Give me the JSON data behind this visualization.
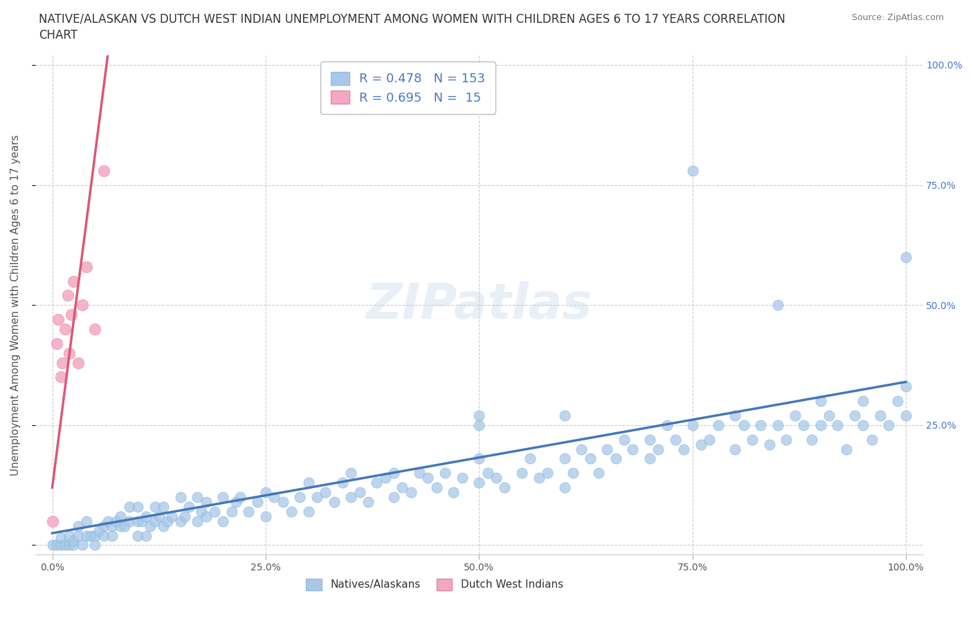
{
  "title_line1": "NATIVE/ALASKAN VS DUTCH WEST INDIAN UNEMPLOYMENT AMONG WOMEN WITH CHILDREN AGES 6 TO 17 YEARS CORRELATION",
  "title_line2": "CHART",
  "source": "Source: ZipAtlas.com",
  "ylabel": "Unemployment Among Women with Children Ages 6 to 17 years",
  "watermark": "ZIPatlas",
  "legend_entries": [
    {
      "label": "Natives/Alaskans",
      "color": "#aec6e8",
      "R": 0.478,
      "N": 153
    },
    {
      "label": "Dutch West Indians",
      "color": "#f4a8c0",
      "R": 0.695,
      "N": 15
    }
  ],
  "blue_scatter": [
    [
      0.0,
      0.0
    ],
    [
      0.005,
      0.0
    ],
    [
      0.01,
      0.0
    ],
    [
      0.01,
      0.015
    ],
    [
      0.015,
      0.0
    ],
    [
      0.02,
      0.0
    ],
    [
      0.02,
      0.02
    ],
    [
      0.025,
      0.0
    ],
    [
      0.025,
      0.01
    ],
    [
      0.03,
      0.02
    ],
    [
      0.03,
      0.04
    ],
    [
      0.035,
      0.0
    ],
    [
      0.04,
      0.02
    ],
    [
      0.04,
      0.05
    ],
    [
      0.045,
      0.02
    ],
    [
      0.05,
      0.0
    ],
    [
      0.05,
      0.02
    ],
    [
      0.055,
      0.03
    ],
    [
      0.06,
      0.02
    ],
    [
      0.06,
      0.04
    ],
    [
      0.065,
      0.05
    ],
    [
      0.07,
      0.02
    ],
    [
      0.07,
      0.04
    ],
    [
      0.075,
      0.05
    ],
    [
      0.08,
      0.04
    ],
    [
      0.08,
      0.06
    ],
    [
      0.085,
      0.04
    ],
    [
      0.09,
      0.05
    ],
    [
      0.09,
      0.08
    ],
    [
      0.1,
      0.02
    ],
    [
      0.1,
      0.05
    ],
    [
      0.1,
      0.08
    ],
    [
      0.105,
      0.05
    ],
    [
      0.11,
      0.02
    ],
    [
      0.11,
      0.06
    ],
    [
      0.115,
      0.04
    ],
    [
      0.12,
      0.05
    ],
    [
      0.12,
      0.08
    ],
    [
      0.125,
      0.06
    ],
    [
      0.13,
      0.04
    ],
    [
      0.13,
      0.08
    ],
    [
      0.135,
      0.05
    ],
    [
      0.14,
      0.06
    ],
    [
      0.15,
      0.05
    ],
    [
      0.15,
      0.1
    ],
    [
      0.155,
      0.06
    ],
    [
      0.16,
      0.08
    ],
    [
      0.17,
      0.05
    ],
    [
      0.17,
      0.1
    ],
    [
      0.175,
      0.07
    ],
    [
      0.18,
      0.06
    ],
    [
      0.18,
      0.09
    ],
    [
      0.19,
      0.07
    ],
    [
      0.2,
      0.05
    ],
    [
      0.2,
      0.1
    ],
    [
      0.21,
      0.07
    ],
    [
      0.215,
      0.09
    ],
    [
      0.22,
      0.1
    ],
    [
      0.23,
      0.07
    ],
    [
      0.24,
      0.09
    ],
    [
      0.25,
      0.06
    ],
    [
      0.25,
      0.11
    ],
    [
      0.26,
      0.1
    ],
    [
      0.27,
      0.09
    ],
    [
      0.28,
      0.07
    ],
    [
      0.29,
      0.1
    ],
    [
      0.3,
      0.07
    ],
    [
      0.3,
      0.13
    ],
    [
      0.31,
      0.1
    ],
    [
      0.32,
      0.11
    ],
    [
      0.33,
      0.09
    ],
    [
      0.34,
      0.13
    ],
    [
      0.35,
      0.1
    ],
    [
      0.35,
      0.15
    ],
    [
      0.36,
      0.11
    ],
    [
      0.37,
      0.09
    ],
    [
      0.38,
      0.13
    ],
    [
      0.39,
      0.14
    ],
    [
      0.4,
      0.1
    ],
    [
      0.4,
      0.15
    ],
    [
      0.41,
      0.12
    ],
    [
      0.42,
      0.11
    ],
    [
      0.43,
      0.15
    ],
    [
      0.44,
      0.14
    ],
    [
      0.45,
      0.12
    ],
    [
      0.46,
      0.15
    ],
    [
      0.47,
      0.11
    ],
    [
      0.48,
      0.14
    ],
    [
      0.5,
      0.13
    ],
    [
      0.5,
      0.18
    ],
    [
      0.5,
      0.25
    ],
    [
      0.51,
      0.15
    ],
    [
      0.52,
      0.14
    ],
    [
      0.53,
      0.12
    ],
    [
      0.55,
      0.15
    ],
    [
      0.56,
      0.18
    ],
    [
      0.57,
      0.14
    ],
    [
      0.58,
      0.15
    ],
    [
      0.6,
      0.12
    ],
    [
      0.6,
      0.18
    ],
    [
      0.61,
      0.15
    ],
    [
      0.62,
      0.2
    ],
    [
      0.63,
      0.18
    ],
    [
      0.64,
      0.15
    ],
    [
      0.65,
      0.2
    ],
    [
      0.66,
      0.18
    ],
    [
      0.67,
      0.22
    ],
    [
      0.68,
      0.2
    ],
    [
      0.7,
      0.18
    ],
    [
      0.7,
      0.22
    ],
    [
      0.71,
      0.2
    ],
    [
      0.72,
      0.25
    ],
    [
      0.73,
      0.22
    ],
    [
      0.74,
      0.2
    ],
    [
      0.75,
      0.25
    ],
    [
      0.76,
      0.21
    ],
    [
      0.77,
      0.22
    ],
    [
      0.78,
      0.25
    ],
    [
      0.8,
      0.2
    ],
    [
      0.8,
      0.27
    ],
    [
      0.81,
      0.25
    ],
    [
      0.82,
      0.22
    ],
    [
      0.83,
      0.25
    ],
    [
      0.84,
      0.21
    ],
    [
      0.85,
      0.25
    ],
    [
      0.85,
      0.5
    ],
    [
      0.86,
      0.22
    ],
    [
      0.87,
      0.27
    ],
    [
      0.88,
      0.25
    ],
    [
      0.89,
      0.22
    ],
    [
      0.9,
      0.25
    ],
    [
      0.9,
      0.3
    ],
    [
      0.91,
      0.27
    ],
    [
      0.92,
      0.25
    ],
    [
      0.93,
      0.2
    ],
    [
      0.94,
      0.27
    ],
    [
      0.95,
      0.25
    ],
    [
      0.95,
      0.3
    ],
    [
      0.96,
      0.22
    ],
    [
      0.97,
      0.27
    ],
    [
      0.98,
      0.25
    ],
    [
      0.99,
      0.3
    ],
    [
      1.0,
      0.27
    ],
    [
      1.0,
      0.33
    ],
    [
      1.0,
      0.6
    ],
    [
      0.6,
      0.27
    ],
    [
      0.5,
      0.27
    ],
    [
      0.75,
      0.78
    ]
  ],
  "pink_scatter": [
    [
      0.0,
      0.05
    ],
    [
      0.005,
      0.42
    ],
    [
      0.007,
      0.47
    ],
    [
      0.01,
      0.35
    ],
    [
      0.012,
      0.38
    ],
    [
      0.015,
      0.45
    ],
    [
      0.018,
      0.52
    ],
    [
      0.02,
      0.4
    ],
    [
      0.022,
      0.48
    ],
    [
      0.025,
      0.55
    ],
    [
      0.03,
      0.38
    ],
    [
      0.035,
      0.5
    ],
    [
      0.04,
      0.58
    ],
    [
      0.05,
      0.45
    ],
    [
      0.06,
      0.78
    ]
  ],
  "blue_line": {
    "x0": 0.0,
    "y0": 0.025,
    "x1": 1.0,
    "y1": 0.34
  },
  "pink_line": {
    "x0": 0.0,
    "y0": 0.12,
    "x1": 0.065,
    "y1": 1.02
  },
  "xmin": 0.0,
  "xmax": 1.0,
  "ymin": 0.0,
  "ymax": 1.0,
  "xticks": [
    0.0,
    0.25,
    0.5,
    0.75,
    1.0
  ],
  "yticks": [
    0.0,
    0.25,
    0.5,
    0.75,
    1.0
  ],
  "xtick_labels": [
    "0.0%",
    "25.0%",
    "50.0%",
    "75.0%",
    "100.0%"
  ],
  "right_ytick_labels": [
    "",
    "25.0%",
    "50.0%",
    "75.0%",
    "100.0%"
  ],
  "grid_color": "#cccccc",
  "background_color": "#ffffff",
  "blue_color": "#a8c8e8",
  "pink_color": "#f4a8c0",
  "blue_line_color": "#4477bb",
  "pink_line_color": "#dd5577",
  "legend_text_color": "#4477cc",
  "title_fontsize": 12,
  "axis_label_fontsize": 11
}
